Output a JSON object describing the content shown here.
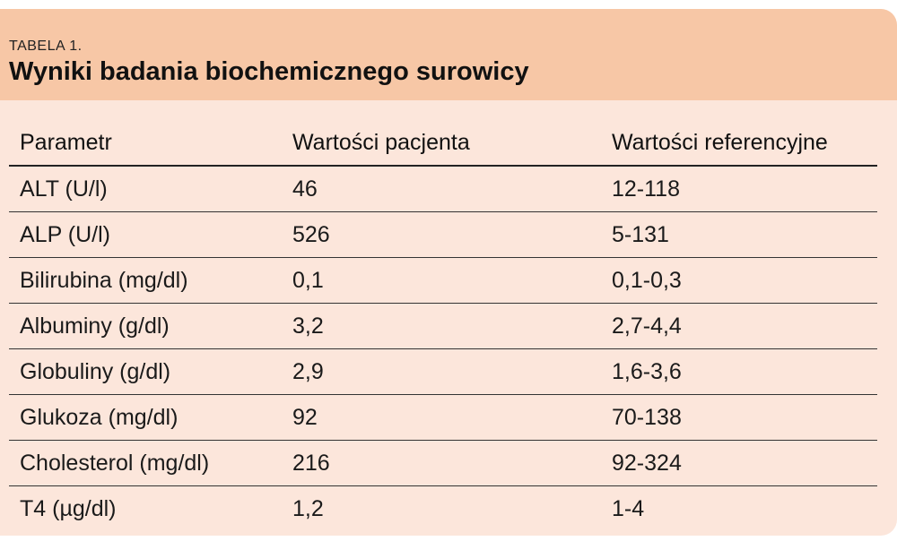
{
  "table": {
    "label": "TABELA 1.",
    "title": "Wyniki badania biochemicznego surowicy",
    "headers": [
      "Parametr",
      "Wartości pacjenta",
      "Wartości referencyjne"
    ],
    "rows": [
      [
        "ALT (U/l)",
        "46",
        "12-118"
      ],
      [
        "ALP (U/l)",
        "526",
        "5-131"
      ],
      [
        "Bilirubina (mg/dl)",
        "0,1",
        "0,1-0,3"
      ],
      [
        "Albuminy (g/dl)",
        "3,2",
        "2,7-4,4"
      ],
      [
        "Globuliny (g/dl)",
        "2,9",
        "1,6-3,6"
      ],
      [
        "Glukoza (mg/dl)",
        "92",
        "70-138"
      ],
      [
        "Cholesterol (mg/dl)",
        "216",
        "92-324"
      ],
      [
        "T4 (µg/dl)",
        "1,2",
        "1-4"
      ]
    ]
  }
}
